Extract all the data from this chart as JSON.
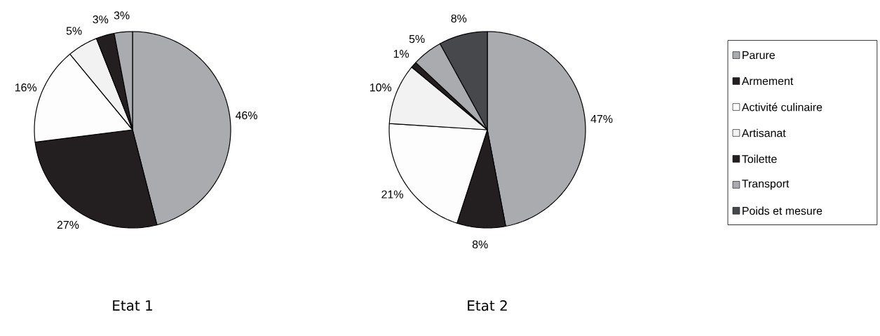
{
  "chart_data": [
    {
      "type": "pie",
      "title": "Etat 1",
      "categories": [
        null,
        null,
        null,
        null,
        null,
        null,
        null
      ],
      "values": [
        46,
        27,
        16,
        5,
        3,
        3,
        null
      ],
      "value_labels": [
        "46%",
        "27%",
        "16%",
        "5%",
        "3%",
        "3%",
        null
      ],
      "colors": [
        "#aaabae",
        "#231f20",
        "#fdfdfd",
        "#f2f2f2",
        "#231f20",
        "#aaabae",
        "#47484b"
      ]
    },
    {
      "type": "pie",
      "title": "Etat 2",
      "categories": [
        "Parure",
        "Armement",
        "Activité culinaire",
        "Artisanat",
        "Toilette",
        "Transport",
        "Poids et mesure"
      ],
      "values": [
        47,
        8,
        21,
        10,
        1,
        5,
        8
      ],
      "value_labels": [
        "47%",
        "8%",
        "21%",
        "10%",
        "1%",
        "5%",
        "8%"
      ],
      "colors": [
        "#aaabae",
        "#231f20",
        "#fdfdfd",
        "#f2f2f2",
        "#231f20",
        "#aaabae",
        "#47484b"
      ],
      "legend": "right"
    }
  ]
}
